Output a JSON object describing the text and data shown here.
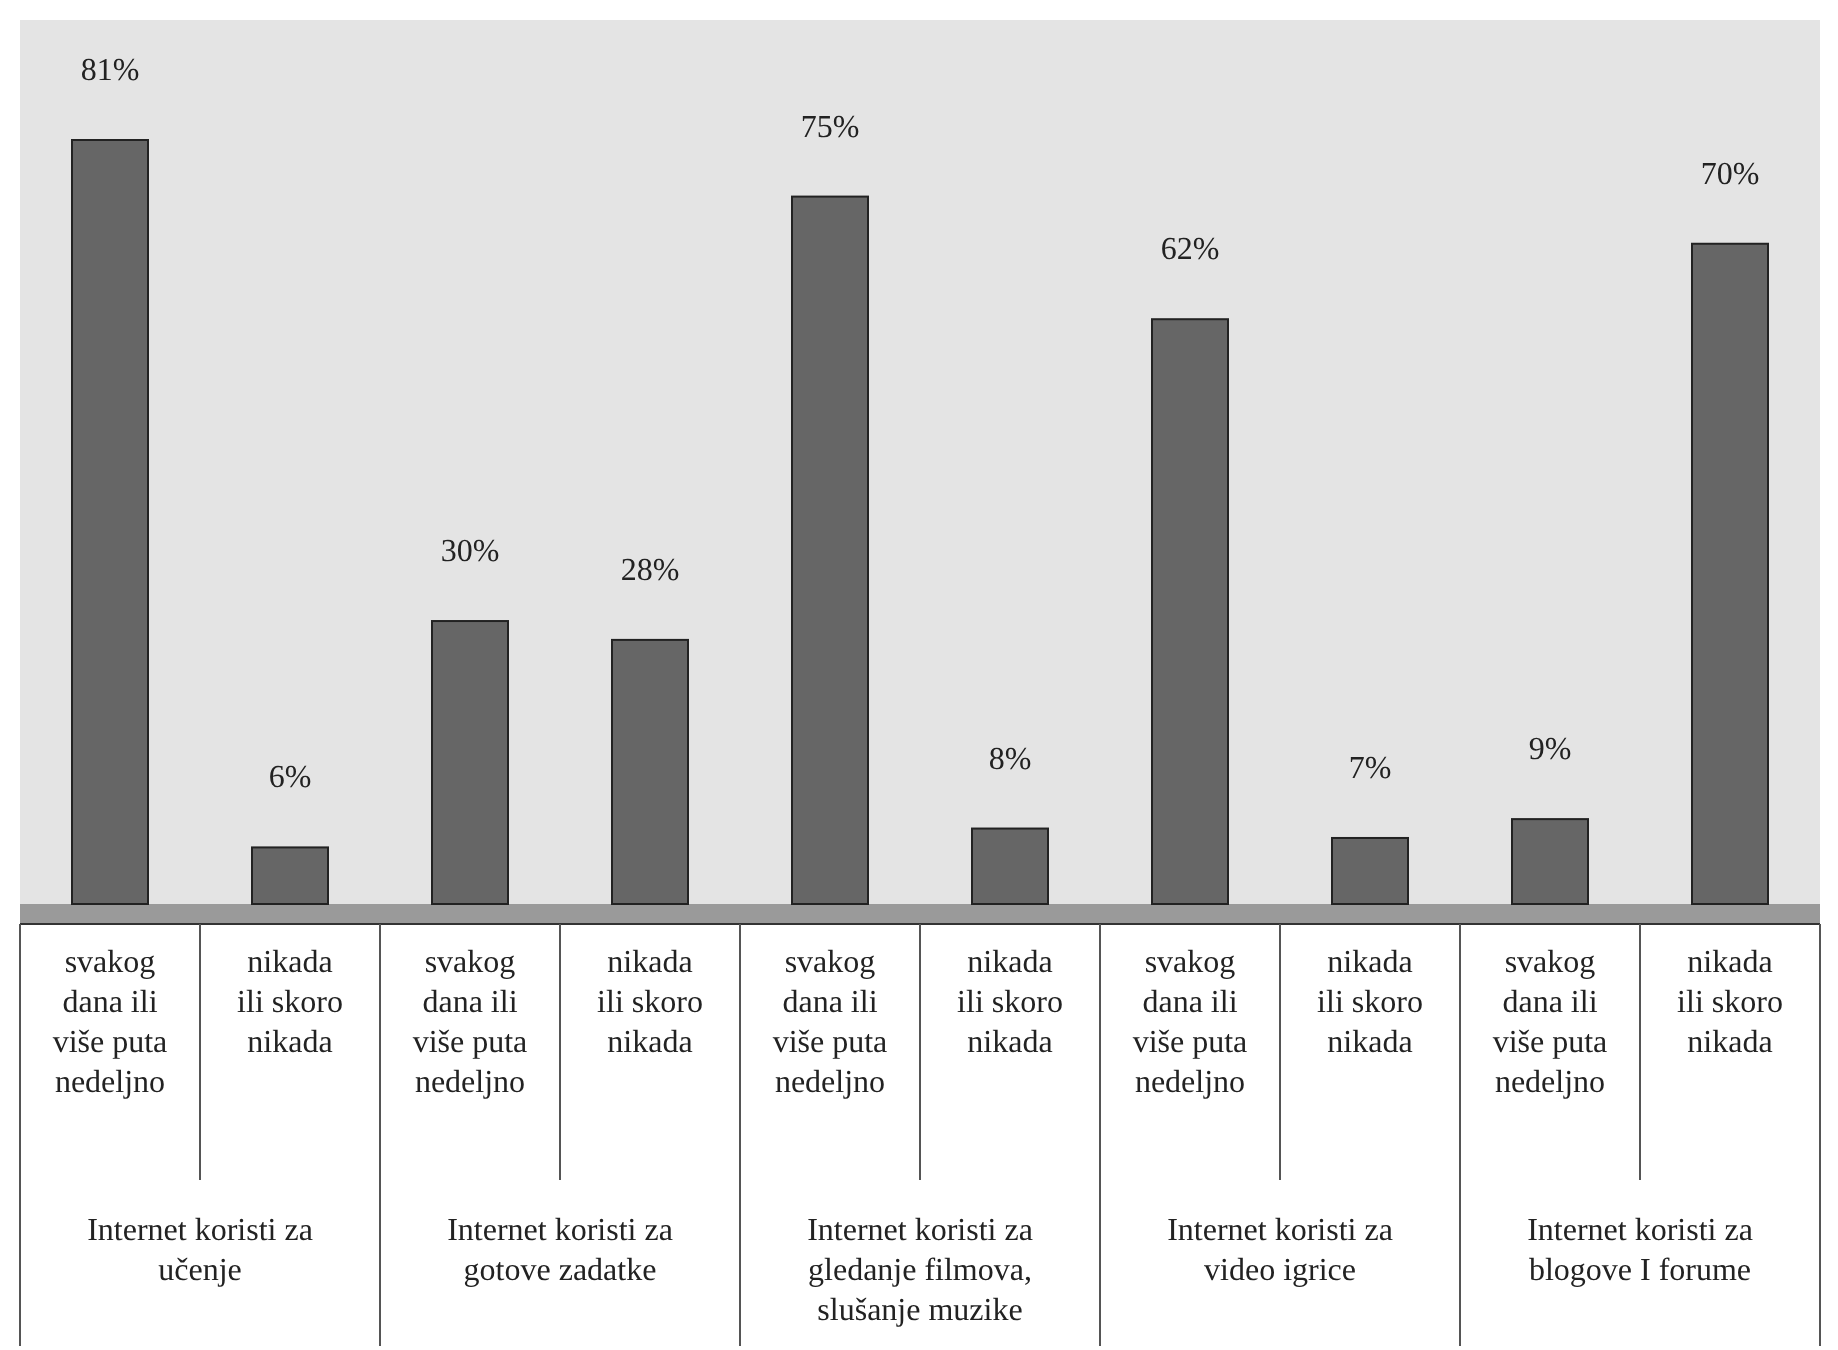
{
  "chart_data": {
    "type": "bar",
    "categories": [
      "svakog dana ili više puta nedeljno",
      "nikada ili skoro nikada",
      "svakog dana ili više puta nedeljno",
      "nikada ili skoro nikada",
      "svakog dana ili više puta nedeljno",
      "nikada ili skoro nikada",
      "svakog dana ili više puta nedeljno",
      "nikada ili skoro nikada",
      "svakog dana ili više puta nedeljno",
      "nikada ili skoro nikada"
    ],
    "values": [
      81,
      6,
      30,
      28,
      75,
      8,
      62,
      7,
      9,
      70
    ],
    "value_labels": [
      "81%",
      "6%",
      "30%",
      "28%",
      "75%",
      "8%",
      "62%",
      "7%",
      "9%",
      "70%"
    ],
    "color": "#666666",
    "annotations": [
      "Internet koristi za učenje",
      "Internet koristi za gotove zadatke",
      "Internet koristi za gledanje filmova, slušanje muzike",
      "Internet koristi za video igrice",
      "Internet koristi za blogove I forume"
    ]
  }
}
